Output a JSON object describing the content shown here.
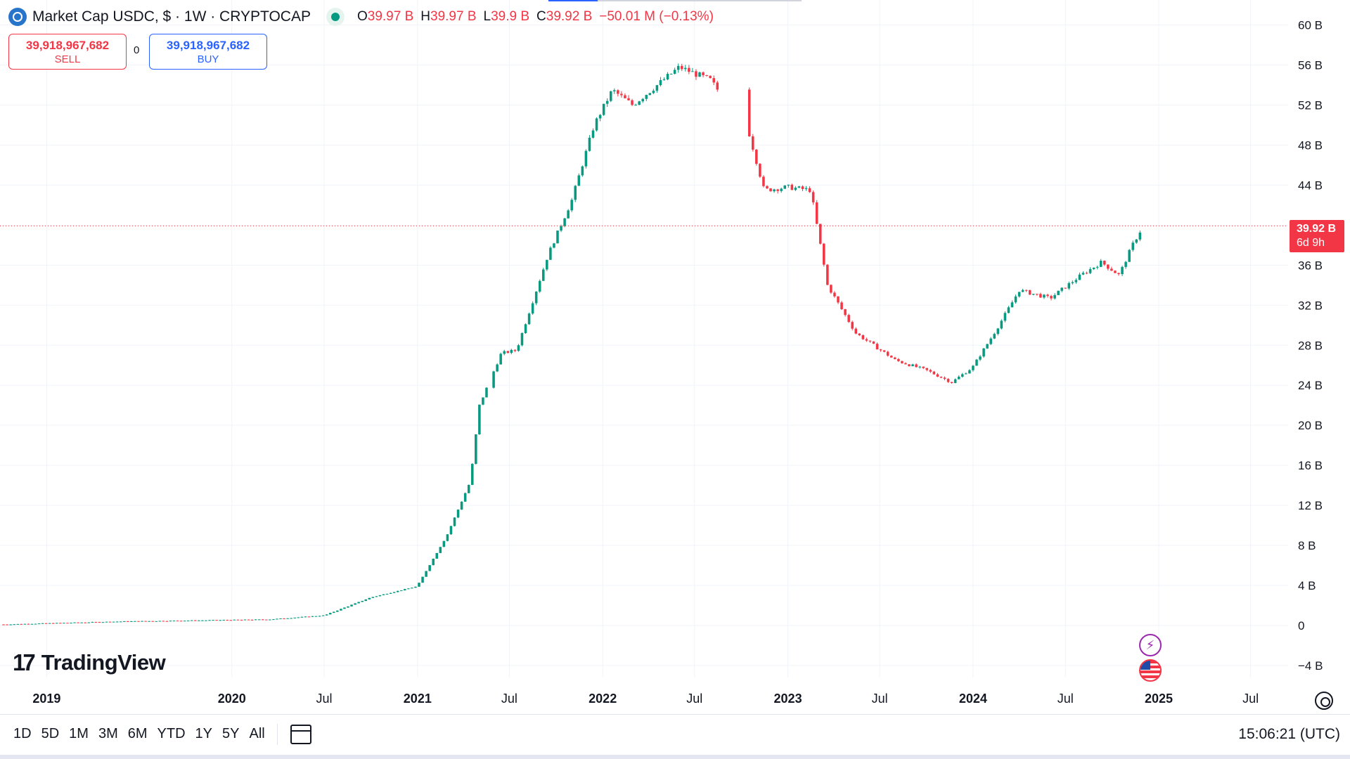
{
  "legend": {
    "title": "Market Cap USDC, $ · 1W · CRYPTOCAP",
    "open_label": "O",
    "open": "39.97 B",
    "high_label": "H",
    "high": "39.97 B",
    "low_label": "L",
    "low": "39.9 B",
    "close_label": "C",
    "close": "39.92 B",
    "change": "−50.01 M (−0.13%)"
  },
  "trade": {
    "sell_price": "39,918,967,682",
    "sell_label": "SELL",
    "spread": "0",
    "buy_price": "39,918,967,682",
    "buy_label": "BUY"
  },
  "last_price": {
    "value": "39.92 B",
    "countdown": "6d 9h"
  },
  "branding": {
    "logo_text": "TradingView",
    "logo_mark": "17"
  },
  "bottom_bar": {
    "ranges": [
      "1D",
      "5D",
      "1M",
      "3M",
      "6M",
      "YTD",
      "1Y",
      "5Y",
      "All"
    ],
    "clock": "15:06:21 (UTC)"
  },
  "colors": {
    "up": "#089981",
    "down": "#f23645",
    "grid": "#f0f3fa",
    "text": "#131722",
    "last_price_line": "#f23645"
  },
  "icons": [
    "usdc-logo-icon",
    "live-dot-icon",
    "event-lightning-icon",
    "us-flag-event-icon",
    "settings-gear-icon",
    "calendar-goto-icon"
  ],
  "chart_data": {
    "type": "candlestick",
    "title": "Market Cap USDC, $ · 1W · CRYPTOCAP",
    "y_axis": {
      "unit": "B USD",
      "ticks": [
        -4,
        0,
        4,
        8,
        12,
        16,
        20,
        24,
        28,
        32,
        36,
        40,
        44,
        48,
        52,
        56,
        60
      ],
      "tick_labels": [
        "−4 B",
        "0",
        "4 B",
        "8 B",
        "12 B",
        "16 B",
        "20 B",
        "24 B",
        "28 B",
        "32 B",
        "36 B",
        "40 B",
        "44 B",
        "48 B",
        "52 B",
        "56 B",
        "60 B"
      ],
      "range": [
        -5.2,
        62.5
      ]
    },
    "x_axis": {
      "range": [
        "2018-10-01",
        "2025-09-13"
      ],
      "ticks": [
        {
          "date": "2019-01-01",
          "label": "2019"
        },
        {
          "date": "2020-01-01",
          "label": "2020"
        },
        {
          "date": "2020-07-01",
          "label": "Jul"
        },
        {
          "date": "2021-01-01",
          "label": "2021"
        },
        {
          "date": "2021-07-01",
          "label": "Jul"
        },
        {
          "date": "2022-01-01",
          "label": "2022"
        },
        {
          "date": "2022-07-01",
          "label": "Jul"
        },
        {
          "date": "2023-01-01",
          "label": "2023"
        },
        {
          "date": "2023-07-01",
          "label": "Jul"
        },
        {
          "date": "2024-01-01",
          "label": "2024"
        },
        {
          "date": "2024-07-01",
          "label": "Jul"
        },
        {
          "date": "2025-01-01",
          "label": "2025"
        },
        {
          "date": "2025-07-01",
          "label": "Jul"
        }
      ]
    },
    "last_close": 39.92,
    "grid": true,
    "key_points": [
      {
        "date": "2018-10-08",
        "value": 0.1
      },
      {
        "date": "2019-06-01",
        "value": 0.4
      },
      {
        "date": "2020-03-15",
        "value": 0.6
      },
      {
        "date": "2020-07-01",
        "value": 1.0
      },
      {
        "date": "2020-10-01",
        "value": 2.8
      },
      {
        "date": "2020-12-31",
        "value": 3.9
      },
      {
        "date": "2021-02-28",
        "value": 9.0
      },
      {
        "date": "2021-04-15",
        "value": 14.4
      },
      {
        "date": "2021-05-03",
        "value": 22.0
      },
      {
        "date": "2021-06-15",
        "value": 27.2
      },
      {
        "date": "2021-07-15",
        "value": 27.5
      },
      {
        "date": "2021-08-20",
        "value": 33.0
      },
      {
        "date": "2021-09-15",
        "value": 37.0
      },
      {
        "date": "2021-11-01",
        "value": 42.5
      },
      {
        "date": "2021-12-15",
        "value": 50.0
      },
      {
        "date": "2022-01-20",
        "value": 53.5
      },
      {
        "date": "2022-03-01",
        "value": 52.0
      },
      {
        "date": "2022-06-01",
        "value": 55.8
      },
      {
        "date": "2022-08-01",
        "value": 54.5
      },
      {
        "date": "2022-10-15",
        "value": 49.5
      },
      {
        "date": "2022-11-15",
        "value": 43.5
      },
      {
        "date": "2023-01-01",
        "value": 43.8
      },
      {
        "date": "2023-02-15",
        "value": 43.5
      },
      {
        "date": "2023-03-20",
        "value": 34.0
      },
      {
        "date": "2023-05-15",
        "value": 29.2
      },
      {
        "date": "2023-08-01",
        "value": 26.5
      },
      {
        "date": "2023-10-01",
        "value": 25.5
      },
      {
        "date": "2023-11-20",
        "value": 24.3
      },
      {
        "date": "2023-12-31",
        "value": 25.8
      },
      {
        "date": "2024-02-15",
        "value": 29.5
      },
      {
        "date": "2024-04-01",
        "value": 33.5
      },
      {
        "date": "2024-06-01",
        "value": 32.7
      },
      {
        "date": "2024-08-01",
        "value": 35.0
      },
      {
        "date": "2024-09-10",
        "value": 36.3
      },
      {
        "date": "2024-10-15",
        "value": 35.0
      },
      {
        "date": "2024-11-10",
        "value": 38.0
      },
      {
        "date": "2024-12-01",
        "value": 39.92
      }
    ],
    "data_gaps": [
      [
        "2021-05-22",
        "2021-05-30"
      ],
      [
        "2022-08-22",
        "2022-10-12"
      ]
    ]
  }
}
